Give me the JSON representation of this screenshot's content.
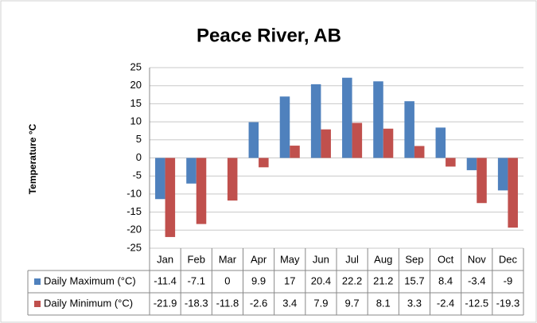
{
  "chart_data": {
    "type": "bar",
    "title": "Peace River, AB",
    "y_label": "Temperature °C",
    "categories": [
      "Jan",
      "Feb",
      "Mar",
      "Apr",
      "May",
      "Jun",
      "Jul",
      "Aug",
      "Sep",
      "Oct",
      "Nov",
      "Dec"
    ],
    "series": [
      {
        "name": "Daily Maximum (°C)",
        "color": "#4f81bd",
        "values": [
          -11.4,
          -7.1,
          0,
          9.9,
          17,
          20.4,
          22.2,
          21.2,
          15.7,
          8.4,
          -3.4,
          -9
        ]
      },
      {
        "name": "Daily Minimum (°C)",
        "color": "#c0504d",
        "values": [
          -21.9,
          -18.3,
          -11.8,
          -2.6,
          3.4,
          7.9,
          9.7,
          8.1,
          3.3,
          -2.4,
          -12.5,
          -19.3
        ]
      }
    ],
    "ylim": [
      -25,
      25
    ],
    "yticks": [
      -25,
      -20,
      -15,
      -10,
      -5,
      0,
      5,
      10,
      15,
      20,
      25
    ],
    "grid": true
  }
}
